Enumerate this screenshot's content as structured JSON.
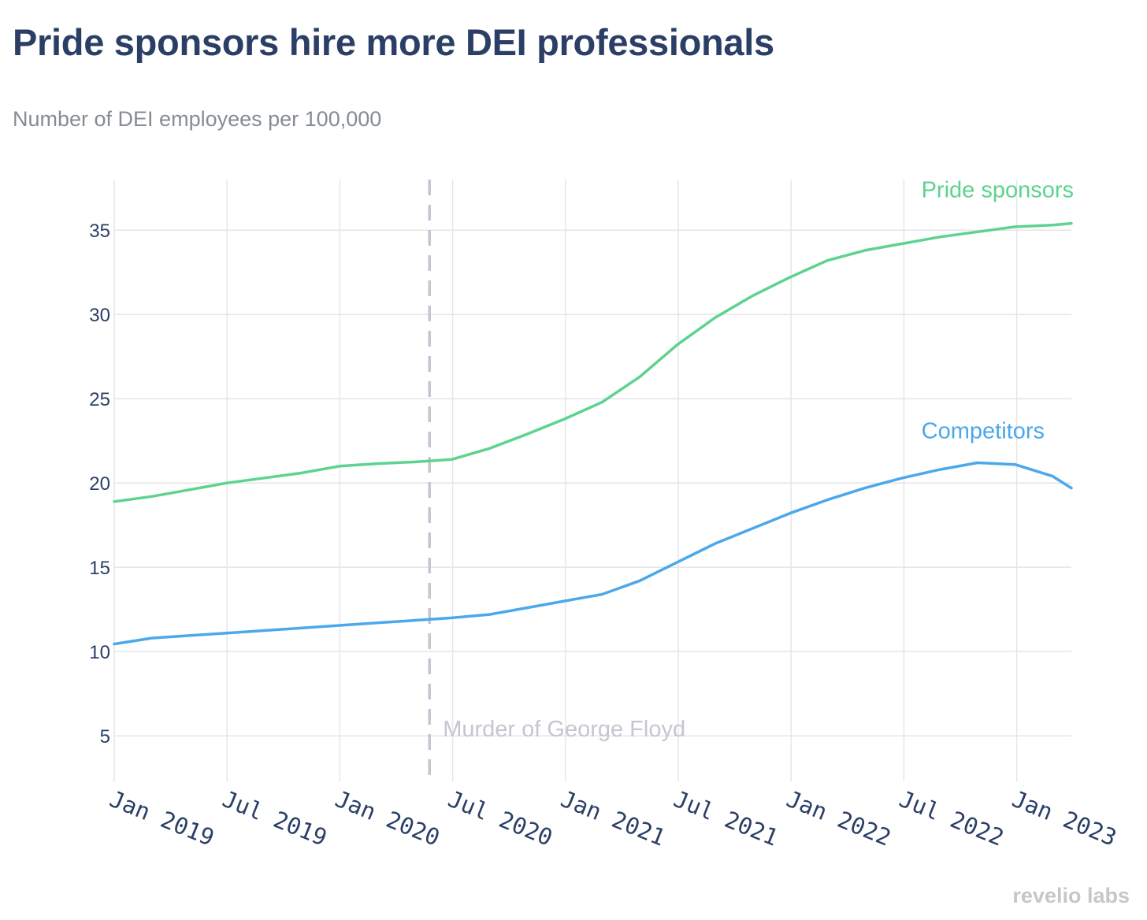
{
  "brand": "revelio labs",
  "chart_data": {
    "type": "line",
    "title": "Pride sponsors hire more DEI professionals",
    "subtitle": "Number of DEI employees per 100,000",
    "xlabel": "",
    "ylabel": "",
    "x_ticks": [
      "Jan 2019",
      "Jul 2019",
      "Jan 2020",
      "Jul 2020",
      "Jan 2021",
      "Jul 2021",
      "Jan 2022",
      "Jul 2022",
      "Jan 2023"
    ],
    "y_ticks": [
      5,
      10,
      15,
      20,
      25,
      30,
      35
    ],
    "ylim": [
      2.3,
      38
    ],
    "xlim": [
      0,
      25.5
    ],
    "grid": true,
    "series": [
      {
        "name": "Pride sponsors",
        "color": "#5dd38f",
        "x": [
          0,
          1,
          2,
          3,
          4,
          5,
          6,
          7,
          8,
          9,
          10,
          11,
          12,
          13,
          14,
          15,
          16,
          17,
          18,
          19,
          20,
          21,
          22,
          23,
          24,
          25,
          25.5
        ],
        "values": [
          18.9,
          19.2,
          19.6,
          20.0,
          20.3,
          20.6,
          21.0,
          21.15,
          21.25,
          21.4,
          22.05,
          22.9,
          23.8,
          24.8,
          26.3,
          28.2,
          29.8,
          31.1,
          32.2,
          33.2,
          33.8,
          34.2,
          34.6,
          34.9,
          35.2,
          35.3,
          35.4
        ]
      },
      {
        "name": "Competitors",
        "color": "#4ba8ea",
        "x": [
          0,
          1,
          2,
          3,
          4,
          5,
          6,
          7,
          8,
          9,
          10,
          11,
          12,
          13,
          14,
          15,
          16,
          17,
          18,
          19,
          20,
          21,
          22,
          23,
          24,
          25,
          25.5
        ],
        "values": [
          10.45,
          10.8,
          10.95,
          11.1,
          11.25,
          11.4,
          11.55,
          11.7,
          11.85,
          12.0,
          12.2,
          12.6,
          13.0,
          13.4,
          14.2,
          15.3,
          16.4,
          17.3,
          18.2,
          19.0,
          19.7,
          20.3,
          20.8,
          21.2,
          21.1,
          20.4,
          19.7
        ]
      }
    ],
    "annotations": [
      {
        "text": "Murder of George Floyd",
        "x": 8.4,
        "style": "dashed-vertical-line"
      }
    ]
  }
}
